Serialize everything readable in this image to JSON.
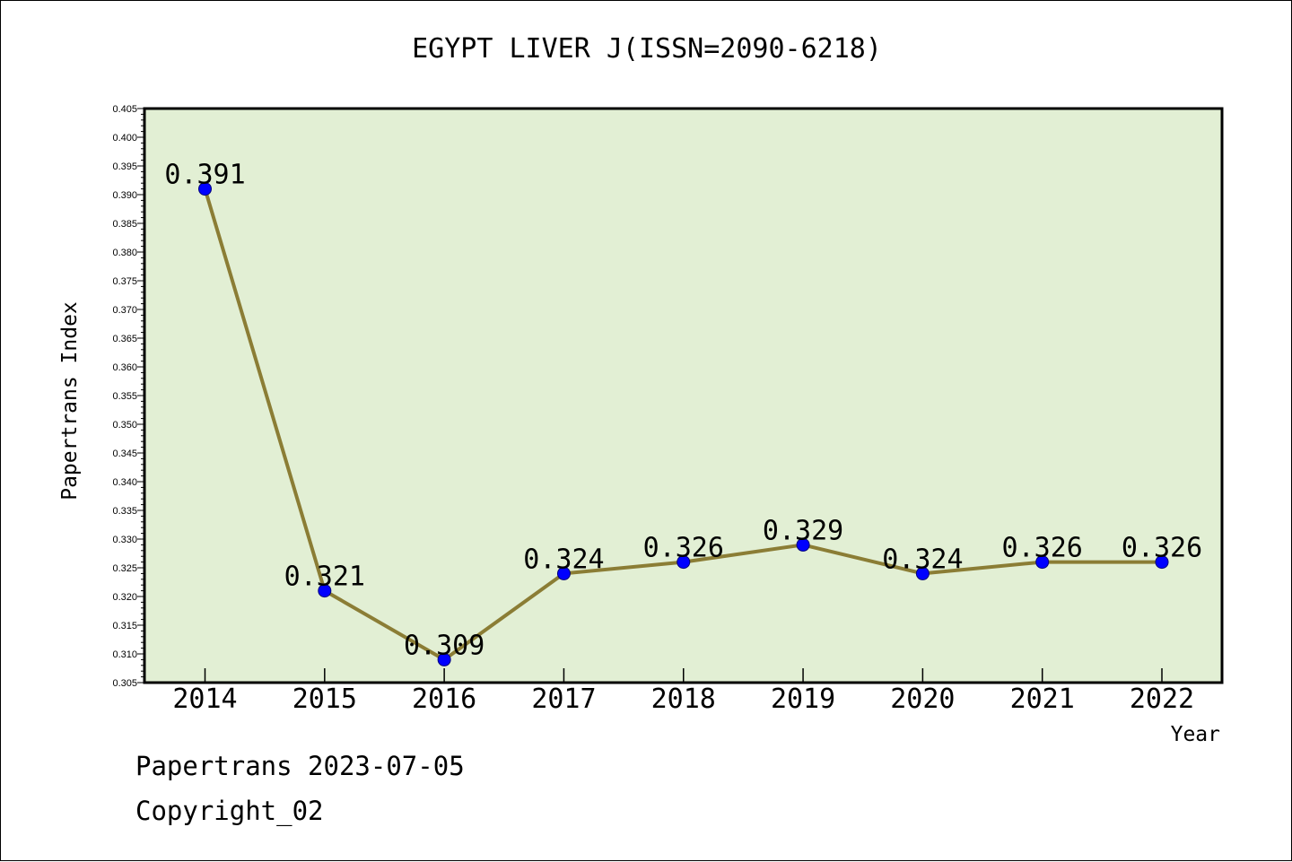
{
  "colors": {
    "plot_bg": "#e2efd4",
    "line": "#8b7d35",
    "marker": "#0000ff",
    "axis": "#000000"
  },
  "chart_data": {
    "type": "line",
    "title": "EGYPT LIVER J(ISSN=2090-6218)",
    "xlabel": "Year",
    "ylabel": "Papertrans Index",
    "categories": [
      "2014",
      "2015",
      "2016",
      "2017",
      "2018",
      "2019",
      "2020",
      "2021",
      "2022"
    ],
    "series": [
      {
        "values": [
          0.391,
          0.321,
          0.309,
          0.324,
          0.326,
          0.329,
          0.324,
          0.326,
          0.326
        ]
      }
    ],
    "data_labels": [
      "0.391",
      "0.321",
      "0.309",
      "0.324",
      "0.326",
      "0.329",
      "0.324",
      "0.326",
      "0.326"
    ],
    "ylim": [
      0.305,
      0.405
    ],
    "yticks": [
      "0.305",
      "0.310",
      "0.315",
      "0.320",
      "0.325",
      "0.330",
      "0.335",
      "0.340",
      "0.345",
      "0.350",
      "0.355",
      "0.360",
      "0.365",
      "0.370",
      "0.375",
      "0.380",
      "0.385",
      "0.390",
      "0.395",
      "0.400",
      "0.405"
    ],
    "grid": false,
    "legend": "none"
  },
  "footer": {
    "line1": "Papertrans 2023-07-05",
    "line2": "Copyright_02"
  }
}
